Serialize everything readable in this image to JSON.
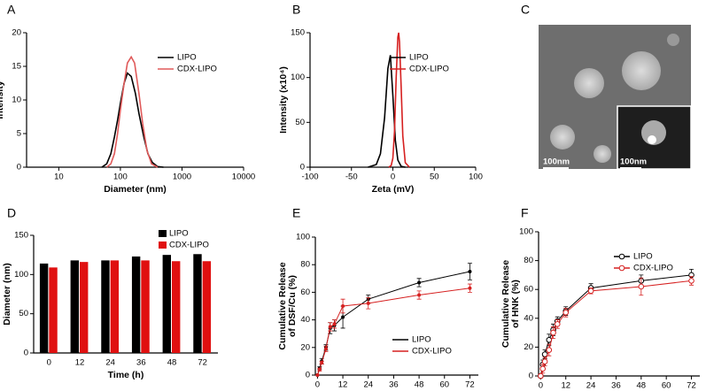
{
  "chart_data": [
    {
      "type": "line",
      "label": "A",
      "xlog": true,
      "xlabel": "Diameter (nm)",
      "ylabel": [
        "Intensity"
      ],
      "xlim": [
        3,
        10000
      ],
      "xticks": [
        10,
        100,
        1000,
        10000
      ],
      "ylim": [
        0,
        20
      ],
      "yticks": [
        0,
        5,
        10,
        15,
        20
      ],
      "legend": "upper right",
      "series": [
        {
          "name": "LIPO",
          "color": "#000000",
          "x": [
            50,
            60,
            70,
            80,
            90,
            100,
            115,
            130,
            150,
            175,
            200,
            240,
            280,
            330,
            400,
            500
          ],
          "values": [
            0,
            0.5,
            2,
            4.5,
            7,
            9.5,
            12.5,
            14,
            13.5,
            11,
            8,
            4.5,
            2,
            0.7,
            0.1,
            0
          ]
        },
        {
          "name": "CDX-LIPO",
          "color": "#e05a5a",
          "x": [
            60,
            70,
            80,
            90,
            100,
            115,
            130,
            150,
            170,
            200,
            230,
            270,
            320,
            400
          ],
          "values": [
            0,
            0.5,
            2,
            5,
            8.5,
            12.5,
            15.5,
            16.4,
            15.5,
            11,
            6.5,
            2.5,
            0.5,
            0
          ]
        }
      ]
    },
    {
      "type": "line",
      "label": "B",
      "xlabel": "Zeta (mV)",
      "ylabel": [
        "Intensity (x10⁴)"
      ],
      "xlim": [
        -100,
        100
      ],
      "xticks": [
        -100,
        -50,
        0,
        50,
        100
      ],
      "ylim": [
        0,
        150
      ],
      "yticks": [
        0,
        50,
        100,
        150
      ],
      "legend": "upper right",
      "series": [
        {
          "name": "LIPO",
          "color": "#000000",
          "x": [
            -30,
            -20,
            -15,
            -10,
            -6,
            -3,
            0,
            3,
            6,
            10,
            15
          ],
          "values": [
            0,
            3,
            15,
            55,
            110,
            125,
            80,
            30,
            8,
            1,
            0
          ]
        },
        {
          "name": "CDX-LIPO",
          "color": "#d62020",
          "x": [
            -5,
            -2,
            0,
            2,
            4,
            6,
            7,
            8,
            10,
            12,
            15,
            20
          ],
          "values": [
            0,
            2,
            10,
            40,
            100,
            145,
            150,
            140,
            90,
            35,
            5,
            0
          ]
        }
      ]
    },
    {
      "type": "bar",
      "label": "D",
      "xlabel": "Time (h)",
      "ylabel": [
        "Diameter (nm)"
      ],
      "categories": [
        "0",
        "12",
        "24",
        "36",
        "48",
        "72"
      ],
      "ylim": [
        0,
        150
      ],
      "yticks": [
        0,
        50,
        100,
        150
      ],
      "legend": "upper right",
      "series": [
        {
          "name": "LIPO",
          "color": "#000000",
          "values": [
            114,
            118,
            118,
            123,
            125,
            126
          ]
        },
        {
          "name": "CDX-LIPO",
          "color": "#e01010",
          "values": [
            109,
            116,
            118,
            118,
            117,
            117
          ]
        }
      ]
    },
    {
      "type": "errorline",
      "label": "E",
      "marker": "dot",
      "xlabel": "Time (h)",
      "ylabel": [
        "Cumulative Release",
        "of DSF/Cu (%)"
      ],
      "x": [
        0,
        1,
        2,
        4,
        6,
        8,
        12,
        24,
        48,
        72
      ],
      "xlim": [
        -1,
        76
      ],
      "xticks": [
        0,
        12,
        24,
        36,
        48,
        60,
        72
      ],
      "ylim": [
        0,
        100
      ],
      "yticks": [
        0,
        20,
        40,
        60,
        80,
        100
      ],
      "legend": "lower right",
      "series": [
        {
          "name": "LIPO",
          "color": "#000000",
          "values": [
            0,
            5,
            10,
            20,
            34,
            36,
            42,
            55,
            67,
            75
          ],
          "errors": [
            0,
            1,
            2,
            2,
            4,
            4,
            8,
            3,
            3,
            6
          ]
        },
        {
          "name": "CDX-LIPO",
          "color": "#d62020",
          "values": [
            0,
            4,
            9,
            19,
            35,
            37,
            50,
            52,
            58,
            63
          ],
          "errors": [
            0,
            1,
            1,
            2,
            3,
            3,
            5,
            4,
            3,
            3
          ]
        }
      ]
    },
    {
      "type": "errorline",
      "label": "F",
      "marker": "open-circle",
      "xlabel": "Time (h)",
      "ylabel": [
        "Cumulative Release",
        "of HNK (%)"
      ],
      "x": [
        0,
        1,
        2,
        4,
        6,
        8,
        12,
        24,
        48,
        72
      ],
      "xlim": [
        -1,
        76
      ],
      "xticks": [
        0,
        12,
        24,
        36,
        48,
        60,
        72
      ],
      "ylim": [
        0,
        100
      ],
      "yticks": [
        0,
        20,
        40,
        60,
        80,
        100
      ],
      "legend": "upper right",
      "series": [
        {
          "name": "LIPO",
          "color": "#000000",
          "values": [
            0,
            8,
            15,
            25,
            32,
            38,
            45,
            61,
            66,
            70
          ],
          "errors": [
            0,
            3,
            3,
            4,
            4,
            3,
            3,
            3,
            4,
            4
          ]
        },
        {
          "name": "CDX-LIPO",
          "color": "#d62020",
          "values": [
            0,
            5,
            10,
            18,
            30,
            36,
            44,
            59,
            62,
            66
          ],
          "errors": [
            0,
            3,
            3,
            4,
            4,
            3,
            3,
            2,
            6,
            3
          ]
        }
      ]
    }
  ],
  "image_panel": {
    "label": "C",
    "scale_bars": [
      "100nm",
      "100nm"
    ]
  }
}
